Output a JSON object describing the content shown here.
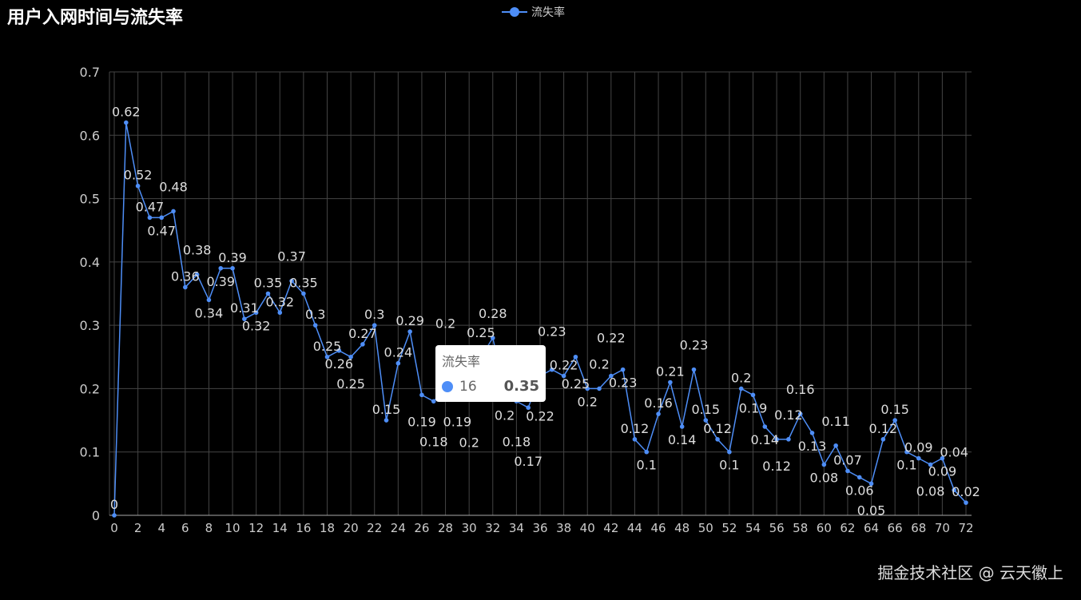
{
  "chart_data": {
    "type": "line",
    "title": "用户入网时间与流失率",
    "legend": [
      "流失率"
    ],
    "legend_placement": "top-center",
    "x": [
      0,
      1,
      2,
      3,
      4,
      5,
      6,
      7,
      8,
      9,
      10,
      11,
      12,
      13,
      14,
      15,
      16,
      17,
      18,
      19,
      20,
      21,
      22,
      23,
      24,
      25,
      26,
      27,
      28,
      29,
      30,
      31,
      32,
      33,
      34,
      35,
      36,
      37,
      38,
      39,
      40,
      41,
      42,
      43,
      44,
      45,
      46,
      47,
      48,
      49,
      50,
      51,
      52,
      53,
      54,
      55,
      56,
      57,
      58,
      59,
      60,
      61,
      62,
      63,
      64,
      65,
      66,
      67,
      68,
      69,
      70,
      71,
      72
    ],
    "series": [
      {
        "name": "流失率",
        "values": [
          0,
          0.62,
          0.52,
          0.47,
          0.47,
          0.48,
          0.36,
          0.38,
          0.34,
          0.39,
          0.39,
          0.31,
          0.32,
          0.35,
          0.32,
          0.37,
          0.35,
          0.3,
          0.25,
          0.26,
          0.25,
          0.27,
          0.3,
          0.15,
          0.24,
          0.29,
          0.19,
          0.18,
          0.2,
          0.19,
          0.2,
          0.25,
          0.28,
          0.2,
          0.18,
          0.17,
          0.22,
          0.23,
          0.22,
          0.25,
          0.2,
          0.2,
          0.22,
          0.23,
          0.12,
          0.1,
          0.16,
          0.21,
          0.14,
          0.23,
          0.15,
          0.12,
          0.1,
          0.2,
          0.19,
          0.14,
          0.12,
          0.12,
          0.16,
          0.13,
          0.08,
          0.11,
          0.07,
          0.06,
          0.05,
          0.12,
          0.15,
          0.1,
          0.09,
          0.08,
          0.09,
          0.04,
          0.02
        ]
      }
    ],
    "xticks": [
      0,
      2,
      4,
      6,
      8,
      10,
      12,
      14,
      16,
      18,
      20,
      22,
      24,
      26,
      28,
      30,
      32,
      34,
      36,
      38,
      40,
      42,
      44,
      46,
      48,
      50,
      52,
      54,
      56,
      58,
      60,
      62,
      64,
      66,
      68,
      70,
      72
    ],
    "yticks": [
      0,
      0.1,
      0.2,
      0.3,
      0.4,
      0.5,
      0.6,
      0.7
    ],
    "ylim": [
      0,
      0.7
    ],
    "grid": true,
    "xlabel": "",
    "ylabel": ""
  },
  "colors": {
    "series": "#4e8ef7",
    "grid": "#444444",
    "axis": "#cccccc"
  },
  "tooltip": {
    "title": "流失率",
    "x": "16",
    "value": "0.35"
  },
  "watermark": "掘金技术社区 @ 云天徽上"
}
